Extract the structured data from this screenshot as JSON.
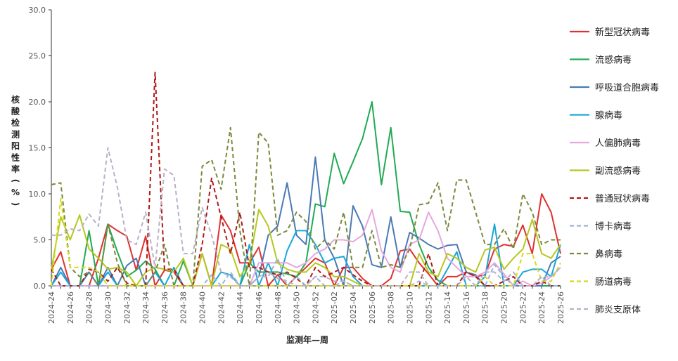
{
  "chart_data": {
    "type": "line",
    "title": "",
    "xlabel": "监测年—周",
    "ylabel": "核酸检测阳性率(%)",
    "ylim": [
      0,
      30
    ],
    "yticks": [
      "0.0",
      "5.0",
      "10.0",
      "15.0",
      "20.0",
      "25.0",
      "30.0"
    ],
    "categories": [
      "2024-24",
      "2024-25",
      "2024-26",
      "2024-27",
      "2024-28",
      "2024-29",
      "2024-30",
      "2024-31",
      "2024-32",
      "2024-33",
      "2024-34",
      "2024-35",
      "2024-36",
      "2024-37",
      "2024-38",
      "2024-39",
      "2024-40",
      "2024-41",
      "2024-42",
      "2024-43",
      "2024-44",
      "2024-45",
      "2024-46",
      "2024-47",
      "2024-48",
      "2024-49",
      "2024-50",
      "2024-51",
      "2024-52",
      "2025-01",
      "2025-02",
      "2025-03",
      "2025-04",
      "2025-05",
      "2025-06",
      "2025-07",
      "2025-08",
      "2025-09",
      "2025-10",
      "2025-11",
      "2025-12",
      "2025-13",
      "2025-14",
      "2025-15",
      "2025-16",
      "2025-17",
      "2025-18",
      "2025-19",
      "2025-20",
      "2025-21",
      "2025-22",
      "2025-23",
      "2025-24",
      "2025-25",
      "2025-26"
    ],
    "tick_labels": [
      "2024-24",
      "2024-26",
      "2024-28",
      "2024-30",
      "2024-32",
      "2024-34",
      "2024-36",
      "2024-38",
      "2024-40",
      "2024-42",
      "2024-44",
      "2024-46",
      "2024-48",
      "2024-50",
      "2024-52",
      "2025-02",
      "2025-04",
      "2025-06",
      "2025-08",
      "2025-10",
      "2025-12",
      "2025-14",
      "2025-16",
      "2025-18",
      "2025-20",
      "2025-22",
      "2025-24",
      "2025-26"
    ],
    "grid": false,
    "legend_position": "right",
    "series": [
      {
        "name": "新型冠状病毒",
        "color": "#e03030",
        "dash": false,
        "values": [
          1.8,
          3.7,
          0,
          0,
          0,
          3.0,
          6.7,
          6.0,
          5.4,
          1.7,
          5.4,
          0,
          1.7,
          1.5,
          0,
          0,
          3.5,
          0,
          7.7,
          6.0,
          2.5,
          2.5,
          4.2,
          0,
          1.2,
          0,
          1.0,
          2.0,
          3.0,
          2.5,
          0,
          2.0,
          2.0,
          0.8,
          0,
          0,
          0.8,
          3.8,
          4.0,
          2.5,
          1.3,
          0,
          1.0,
          1.0,
          1.5,
          1.0,
          1.2,
          4.0,
          4.5,
          4.3,
          6.6,
          3.5,
          10.0,
          8.0,
          3.5
        ]
      },
      {
        "name": "流感病毒",
        "color": "#22aa55",
        "dash": false,
        "values": [
          0,
          0,
          0,
          0,
          6.0,
          0,
          6.7,
          3.7,
          1.0,
          1.7,
          2.7,
          1.8,
          0,
          0,
          2.7,
          0,
          0,
          0,
          0,
          0,
          0,
          2.5,
          1.5,
          1.5,
          1.5,
          1.3,
          1.0,
          2.5,
          8.9,
          8.6,
          14.4,
          11.1,
          13.5,
          16.0,
          20.0,
          11.0,
          17.2,
          8.1,
          8.0,
          4.5,
          2.0,
          0.6,
          0,
          0,
          0,
          0,
          0,
          0,
          0,
          0,
          0,
          0,
          0,
          0,
          0
        ]
      },
      {
        "name": "呼吸道合胞病毒",
        "color": "#4a7ab5",
        "dash": false,
        "values": [
          0,
          2.0,
          0,
          0,
          1.5,
          0,
          2.0,
          0,
          2.2,
          3.0,
          0,
          0,
          0,
          0,
          0,
          0,
          0,
          0,
          0,
          0,
          0,
          0,
          1.0,
          5.5,
          6.5,
          11.2,
          5.5,
          4.5,
          14.0,
          5.0,
          3.0,
          0,
          8.7,
          6.5,
          2.3,
          2.0,
          7.5,
          2.0,
          5.8,
          5.2,
          4.5,
          4.0,
          4.4,
          4.5,
          1.5,
          1.2,
          0,
          0,
          0,
          0,
          0,
          0,
          0,
          2.5,
          3.2
        ]
      },
      {
        "name": "腺病毒",
        "color": "#1aa7d8",
        "dash": false,
        "values": [
          0,
          1.5,
          0,
          0,
          0,
          0,
          1.5,
          0,
          0,
          0,
          0,
          1.5,
          0,
          2.0,
          0,
          0,
          0,
          0,
          1.5,
          1.2,
          0,
          4.5,
          0,
          2.5,
          0,
          3.8,
          6.0,
          6.0,
          4.5,
          2.5,
          3.0,
          3.2,
          1.0,
          0,
          0,
          0,
          0,
          0,
          0,
          0,
          0,
          0,
          1.8,
          3.7,
          0,
          0,
          1.0,
          6.7,
          0,
          0,
          1.5,
          1.8,
          1.8,
          1.0,
          4.5
        ]
      },
      {
        "name": "人偏肺病毒",
        "color": "#e6a8dc",
        "dash": false,
        "values": [
          0,
          0,
          0,
          0,
          0,
          0,
          0,
          0,
          0,
          0,
          0,
          0,
          0,
          0,
          0,
          0,
          0,
          0,
          0,
          0,
          0,
          0,
          2.5,
          2.5,
          2.5,
          2.5,
          2.0,
          2.5,
          3.5,
          4.0,
          5.0,
          5.0,
          4.8,
          5.5,
          8.3,
          3.8,
          2.0,
          1.5,
          4.5,
          5.0,
          8.0,
          6.0,
          3.0,
          2.0,
          1.0,
          1.0,
          1.5,
          2.5,
          1.3,
          0,
          0.5,
          0,
          0.3,
          1.0,
          2.0
        ]
      },
      {
        "name": "副流感病毒",
        "color": "#b5c81e",
        "dash": false,
        "values": [
          1.8,
          7.5,
          5.0,
          7.7,
          4.0,
          3.0,
          1.8,
          2.0,
          1.5,
          0,
          1.5,
          2.0,
          1.8,
          1.5,
          3.0,
          0,
          3.5,
          0,
          4.5,
          4.0,
          1.0,
          2.5,
          8.3,
          6.5,
          2.5,
          1.8,
          1.5,
          1.5,
          2.5,
          2.0,
          1.0,
          1.0,
          0.5,
          0,
          0,
          0,
          0,
          0,
          0,
          3.5,
          1.5,
          1.0,
          3.5,
          3.0,
          2.0,
          1.5,
          3.9,
          4.2,
          1.8,
          3.0,
          4.0,
          7.2,
          3.5,
          3.0,
          4.5
        ]
      },
      {
        "name": "普通冠状病毒",
        "color": "#b01818",
        "dash": true,
        "values": [
          1.8,
          0,
          0,
          0,
          1.8,
          1.5,
          0.5,
          2.0,
          0.3,
          0,
          0,
          23.2,
          1.8,
          1.8,
          0,
          0,
          4.5,
          11.7,
          7.5,
          3.5,
          8.0,
          2.0,
          2.0,
          1.5,
          1.2,
          1.5,
          0.8,
          0,
          2.0,
          1.0,
          1.5,
          2.0,
          1.2,
          0.5,
          0,
          0,
          0,
          0,
          0,
          0,
          3.5,
          0,
          0,
          0,
          1.5,
          1.0,
          0,
          0,
          0.5,
          1.0,
          0,
          0,
          0.5,
          0,
          0
        ]
      },
      {
        "name": "博卡病毒",
        "color": "#9cb4d8",
        "dash": true,
        "values": [
          0,
          0,
          0,
          0,
          0,
          0,
          0,
          0,
          0,
          0,
          0,
          0,
          0,
          0,
          0,
          0,
          0,
          1.2,
          0,
          1.5,
          0,
          0,
          1.0,
          1.0,
          3.0,
          0,
          1.0,
          0,
          1.0,
          0,
          0,
          0.5,
          0,
          0,
          0,
          0,
          0,
          0,
          0,
          0.5,
          0,
          0,
          0,
          0,
          0,
          0,
          0,
          2.3,
          1.0,
          0,
          0,
          0,
          1.0,
          0,
          0
        ]
      },
      {
        "name": "鼻病毒",
        "color": "#7a8a3a",
        "dash": true,
        "values": [
          11.0,
          11.2,
          2.0,
          1.0,
          1.5,
          0,
          6.7,
          2.5,
          0,
          0,
          0,
          1.5,
          4.5,
          0,
          0,
          0,
          13.0,
          13.7,
          10.5,
          17.2,
          6.0,
          0,
          16.7,
          15.5,
          5.5,
          6.0,
          8.0,
          7.0,
          4.0,
          5.0,
          4.0,
          8.0,
          2.0,
          2.0,
          6.0,
          2.0,
          2.3,
          2.0,
          4.0,
          8.8,
          9.0,
          11.2,
          6.0,
          11.5,
          11.5,
          8.0,
          4.5,
          4.5,
          6.2,
          4.0,
          10.0,
          8.0,
          4.5,
          5.0,
          5.0
        ]
      },
      {
        "name": "肠道病毒",
        "color": "#d8d820",
        "dash": true,
        "values": [
          0,
          9.5,
          2.0,
          2.0,
          2.0,
          1.5,
          0,
          0,
          0,
          0,
          0,
          0,
          0,
          0,
          0,
          0,
          0,
          0,
          0,
          0,
          0,
          0,
          0,
          0,
          0,
          0,
          0,
          0,
          0,
          0,
          0,
          0,
          0,
          0,
          0,
          0,
          0,
          0,
          0,
          0,
          0,
          0,
          0,
          0,
          0,
          0,
          1.0,
          0,
          0,
          0,
          3.5,
          3.5,
          0.5,
          0.5,
          2.5
        ]
      },
      {
        "name": "肺炎支原体",
        "color": "#b8b0c8",
        "dash": true,
        "values": [
          5.5,
          5.5,
          6.2,
          6.0,
          7.8,
          6.5,
          15.0,
          10.7,
          5.0,
          4.5,
          8.0,
          2.0,
          12.7,
          12.0,
          3.5,
          3.5,
          8.5,
          5.5,
          1.5,
          1.0,
          0,
          0,
          1.0,
          1.5,
          0.8,
          0.5,
          0,
          0,
          1.0,
          1.0,
          0.5,
          0.5,
          0,
          0,
          0,
          0,
          0,
          0,
          1.5,
          1.5,
          0,
          0,
          0,
          0,
          1.0,
          0,
          1.5,
          1.5,
          0.5,
          1.5,
          0,
          0,
          1.0,
          1.0,
          2.0
        ]
      }
    ]
  }
}
